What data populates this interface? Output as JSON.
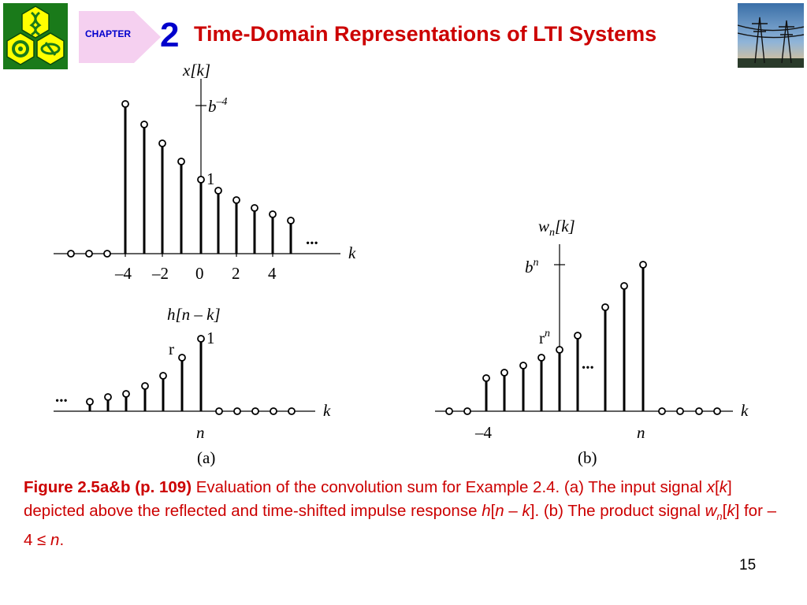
{
  "header": {
    "chapter_label": "CHAPTER",
    "chapter_number": "2",
    "title": "Time-Domain Representations of LTI Systems",
    "colors": {
      "title": "#cc0000",
      "chapter": "#0000cc",
      "tab": "#f5d0f0",
      "logo": "#ffff00"
    }
  },
  "figure": {
    "a_top": {
      "ylabel": "x[k]",
      "xlabel": "k",
      "peak_label": "b",
      "peak_exp": "–4",
      "unit_label": "1",
      "ticks": [
        "–4",
        "–2",
        "0",
        "2",
        "4"
      ],
      "ellipsis": "..."
    },
    "a_bottom": {
      "ylabel": "h[n – k]",
      "xlabel": "k",
      "unit_label": "1",
      "r_label": "r",
      "tick": "n",
      "ellipsis": "..."
    },
    "b": {
      "ylabel_base": "w",
      "ylabel_sub": "n",
      "ylabel_rest": "[k]",
      "xlabel": "k",
      "bn_base": "b",
      "bn_exp": "n",
      "rn_base": "r",
      "rn_exp": "n",
      "ticks": [
        "–4",
        "n"
      ],
      "ellipsis": "..."
    },
    "sub_a": "(a)",
    "sub_b": "(b)"
  },
  "caption": {
    "lead": "Figure 2.5a&b  (p. 109)",
    "s1": " Evaluation of the convolution sum for Example 2.4. (a) The input signal ",
    "x": "x",
    "k1": "k",
    "s2": " depicted above the reflected and time-shifted impulse response ",
    "h": "h",
    "n1": "n",
    "s3": " – ",
    "k2": "k",
    "s4": ". (b) The product signal ",
    "w": "w",
    "wsub": "n",
    "k3": "k",
    "s5": " for –4 ≤ ",
    "n2": "n",
    "s6": "."
  },
  "page_number": "15"
}
